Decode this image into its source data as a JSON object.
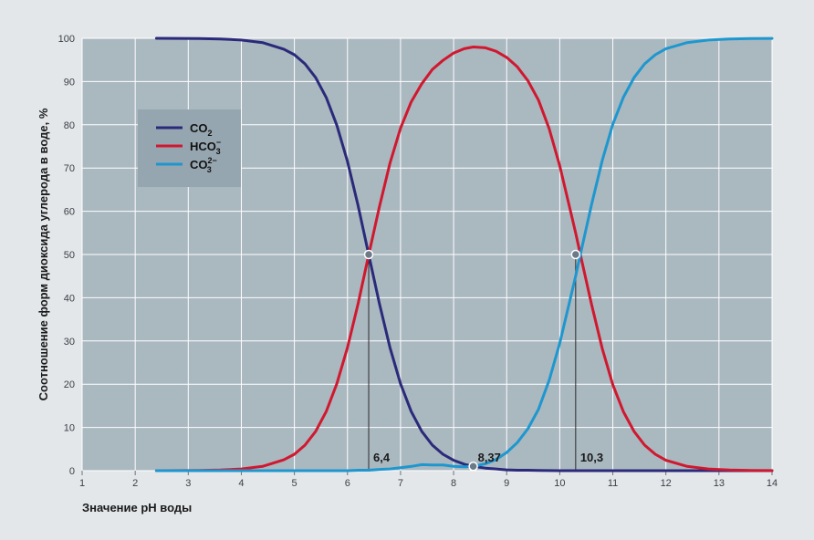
{
  "chart_data": {
    "type": "line",
    "title": "",
    "xlabel": "Значение pH воды",
    "ylabel": "Соотношение форм диоксида углерода в воде, %",
    "xlim": [
      1,
      14
    ],
    "ylim": [
      0,
      100
    ],
    "x_ticks": [
      "1",
      "2",
      "3",
      "4",
      "5",
      "6",
      "7",
      "8",
      "9",
      "10",
      "11",
      "12",
      "13",
      "14"
    ],
    "y_ticks": [
      "0",
      "10",
      "20",
      "30",
      "40",
      "50",
      "60",
      "70",
      "80",
      "90",
      "100"
    ],
    "grid": true,
    "legend_position": "top-left",
    "x": [
      2.4,
      2.8,
      3.2,
      3.6,
      4.0,
      4.4,
      4.8,
      5.0,
      5.2,
      5.4,
      5.6,
      5.8,
      6.0,
      6.2,
      6.4,
      6.6,
      6.8,
      7.0,
      7.2,
      7.4,
      7.6,
      7.8,
      8.0,
      8.2,
      8.37,
      8.6,
      8.8,
      9.0,
      9.2,
      9.4,
      9.6,
      9.8,
      10.0,
      10.2,
      10.3,
      10.4,
      10.6,
      10.8,
      11.0,
      11.2,
      11.4,
      11.6,
      11.8,
      12.0,
      12.4,
      12.8,
      13.2,
      13.6,
      14.0
    ],
    "series": [
      {
        "name": "CO",
        "name_sub": "2",
        "name_sup": "",
        "color": "#2b2a7a",
        "values": [
          99.99,
          99.98,
          99.94,
          99.85,
          99.6,
          99.0,
          97.5,
          96.2,
          94.1,
          90.9,
          86.3,
          79.9,
          71.5,
          61.3,
          50.0,
          38.7,
          28.5,
          20.1,
          13.7,
          9.1,
          5.9,
          3.8,
          2.4,
          1.5,
          1.0,
          0.6,
          0.4,
          0.2,
          0.1,
          0.1,
          0.05,
          0.02,
          0.01,
          0.0,
          0.0,
          0.0,
          0.0,
          0.0,
          0.0,
          0.0,
          0.0,
          0.0,
          0.0,
          0.0,
          0.0,
          0.0,
          0.0,
          0.0,
          0.0
        ]
      },
      {
        "name": "HCO",
        "name_sub": "3",
        "name_sup": "−",
        "color": "#d0182f",
        "values": [
          0.0,
          0.02,
          0.06,
          0.15,
          0.4,
          1.0,
          2.5,
          3.8,
          5.9,
          9.1,
          13.7,
          20.1,
          28.5,
          38.6,
          49.9,
          61.0,
          71.1,
          79.2,
          85.3,
          89.5,
          92.8,
          94.9,
          96.6,
          97.6,
          98.0,
          97.8,
          97.0,
          95.6,
          93.4,
          90.2,
          85.7,
          79.1,
          70.5,
          60.2,
          55.0,
          49.4,
          38.4,
          28.3,
          19.9,
          13.6,
          9.1,
          5.9,
          3.8,
          2.4,
          1.0,
          0.4,
          0.16,
          0.06,
          0.03
        ]
      },
      {
        "name": "CO",
        "name_sub": "3",
        "name_sup": "2−",
        "color": "#1e97cf",
        "values": [
          0.0,
          0.0,
          0.0,
          0.0,
          0.0,
          0.0,
          0.0,
          0.0,
          0.0,
          0.0,
          0.0,
          0.0,
          0.0,
          0.1,
          0.1,
          0.3,
          0.4,
          0.7,
          1.0,
          1.4,
          1.3,
          1.3,
          1.0,
          0.9,
          1.0,
          1.6,
          2.6,
          4.2,
          6.5,
          9.7,
          14.2,
          20.9,
          29.5,
          39.8,
          45.0,
          50.6,
          61.6,
          71.7,
          80.1,
          86.4,
          90.9,
          94.1,
          96.2,
          97.6,
          99.0,
          99.6,
          99.84,
          99.94,
          99.97
        ]
      }
    ],
    "markers": [
      {
        "x": 6.4,
        "y": 50,
        "label": "6,4"
      },
      {
        "x": 8.37,
        "y": 1,
        "label": "8,37"
      },
      {
        "x": 10.3,
        "y": 50,
        "label": "10,3"
      }
    ]
  }
}
